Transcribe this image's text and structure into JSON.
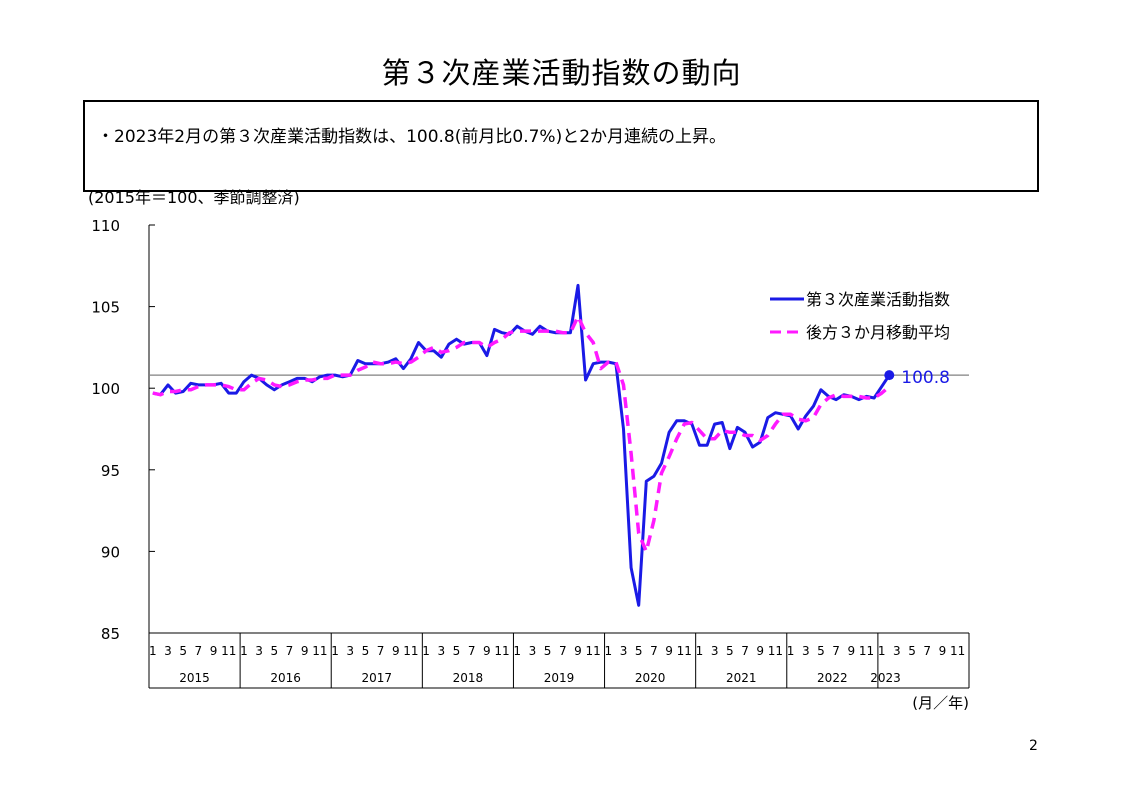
{
  "page": {
    "title": "第３次産業活動指数の動向",
    "summary": "・2023年2月の第３次産業活動指数は、100.8(前月比0.7%)と2か月連続の上昇。",
    "page_number": "2"
  },
  "chart_data": {
    "type": "line",
    "unit_note": "(2015年＝100、季節調整済)",
    "xlabel": "(月／年)",
    "ylim": [
      85,
      110
    ],
    "yticks": [
      85,
      90,
      95,
      100,
      105,
      110
    ],
    "month_tick_labels": [
      "1",
      "3",
      "5",
      "7",
      "9",
      "11"
    ],
    "years": [
      "2015",
      "2016",
      "2017",
      "2018",
      "2019",
      "2020",
      "2021",
      "2022",
      "2023"
    ],
    "reference_line": 100.8,
    "last_value_label": "100.8",
    "colors": {
      "index": "#1a1ae6",
      "moving_average": "#ff19ff",
      "reference": "#808080"
    },
    "legend_position": "top-right",
    "series": [
      {
        "name": "第３次産業活動指数",
        "color": "#1a1ae6",
        "dash": false,
        "values": [
          99.7,
          99.6,
          100.2,
          99.7,
          99.8,
          100.3,
          100.2,
          100.2,
          100.2,
          100.3,
          99.7,
          99.7,
          100.4,
          100.8,
          100.6,
          100.2,
          99.9,
          100.2,
          100.4,
          100.6,
          100.6,
          100.4,
          100.7,
          100.8,
          100.8,
          100.7,
          100.8,
          101.7,
          101.5,
          101.5,
          101.5,
          101.6,
          101.8,
          101.2,
          101.8,
          102.8,
          102.3,
          102.3,
          101.9,
          102.7,
          103.0,
          102.7,
          102.8,
          102.8,
          102.0,
          103.6,
          103.4,
          103.3,
          103.8,
          103.5,
          103.3,
          103.8,
          103.5,
          103.4,
          103.4,
          103.4,
          106.3,
          100.5,
          101.5,
          101.6,
          101.6,
          101.5,
          97.5,
          89.0,
          86.7,
          94.3,
          94.6,
          95.4,
          97.3,
          98.0,
          98.0,
          97.8,
          96.5,
          96.5,
          97.8,
          97.9,
          96.3,
          97.6,
          97.3,
          96.4,
          96.7,
          98.2,
          98.5,
          98.4,
          98.3,
          97.5,
          98.3,
          98.9,
          99.9,
          99.5,
          99.3,
          99.6,
          99.5,
          99.3,
          99.5,
          99.4,
          100.1,
          100.8
        ]
      },
      {
        "name": "後方３か月移動平均",
        "color": "#ff19ff",
        "dash": true,
        "values": [
          99.7,
          99.6,
          99.8,
          99.8,
          99.9,
          99.9,
          100.1,
          100.2,
          100.2,
          100.2,
          100.1,
          99.9,
          99.9,
          100.3,
          100.6,
          100.5,
          100.2,
          100.1,
          100.2,
          100.4,
          100.5,
          100.5,
          100.6,
          100.6,
          100.8,
          100.8,
          100.8,
          101.1,
          101.3,
          101.6,
          101.5,
          101.5,
          101.6,
          101.5,
          101.6,
          101.9,
          102.3,
          102.5,
          102.2,
          102.3,
          102.5,
          102.8,
          102.8,
          102.8,
          102.5,
          102.8,
          103.0,
          103.4,
          103.5,
          103.5,
          103.5,
          103.5,
          103.5,
          103.5,
          103.4,
          103.4,
          104.4,
          103.4,
          102.8,
          101.2,
          101.6,
          101.6,
          100.2,
          96.0,
          91.1,
          90.0,
          91.9,
          94.8,
          95.8,
          96.9,
          97.8,
          97.9,
          97.4,
          96.9,
          96.9,
          97.4,
          97.3,
          97.3,
          97.1,
          97.1,
          96.8,
          97.1,
          97.8,
          98.4,
          98.4,
          98.1,
          98.0,
          98.2,
          99.0,
          99.4,
          99.6,
          99.5,
          99.5,
          99.5,
          99.4,
          99.4,
          99.7,
          100.1
        ]
      }
    ]
  }
}
